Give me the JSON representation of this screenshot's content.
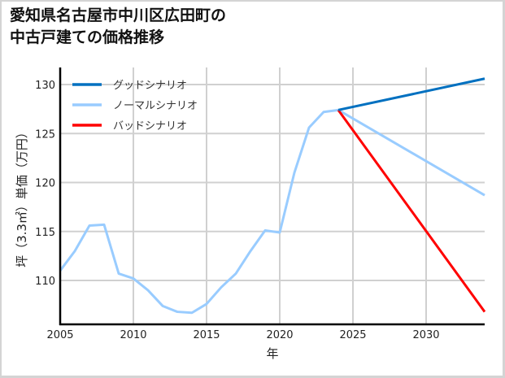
{
  "title_line1": "愛知県名古屋市中川区広田町の",
  "title_line2": "中古戸建ての価格推移",
  "chart_data": {
    "type": "line",
    "title": "愛知県名古屋市中川区広田町の中古戸建ての価格推移",
    "xlabel": "年",
    "ylabel": "坪（3.3㎡）単価（万円）",
    "xlim": [
      2005,
      2034
    ],
    "ylim": [
      105.6,
      131.7
    ],
    "xticks": [
      2005,
      2010,
      2015,
      2020,
      2025,
      2030
    ],
    "yticks": [
      110,
      115,
      120,
      125,
      130
    ],
    "grid": true,
    "legend_position": "upper left",
    "series": [
      {
        "name": "ノーマルシナリオ (historical)",
        "color": "#99ccff",
        "x": [
          2005,
          2006,
          2007,
          2008,
          2009,
          2010,
          2011,
          2012,
          2013,
          2014,
          2015,
          2016,
          2017,
          2018,
          2019,
          2020,
          2021,
          2022,
          2023,
          2024
        ],
        "y": [
          111.0,
          113.0,
          115.6,
          115.7,
          110.7,
          110.2,
          109.0,
          107.4,
          106.8,
          106.7,
          107.6,
          109.3,
          110.7,
          113.0,
          115.1,
          114.9,
          121.0,
          125.6,
          127.2,
          127.4
        ]
      },
      {
        "name": "グッドシナリオ",
        "color": "#0070c0",
        "x": [
          2024,
          2034
        ],
        "y": [
          127.4,
          130.6
        ]
      },
      {
        "name": "ノーマルシナリオ",
        "color": "#99ccff",
        "x": [
          2024,
          2034
        ],
        "y": [
          127.4,
          118.7
        ]
      },
      {
        "name": "バッドシナリオ",
        "color": "#ff0000",
        "x": [
          2024,
          2034
        ],
        "y": [
          127.4,
          106.8
        ]
      }
    ],
    "legend": [
      "グッドシナリオ",
      "ノーマルシナリオ",
      "バッドシナリオ"
    ]
  }
}
